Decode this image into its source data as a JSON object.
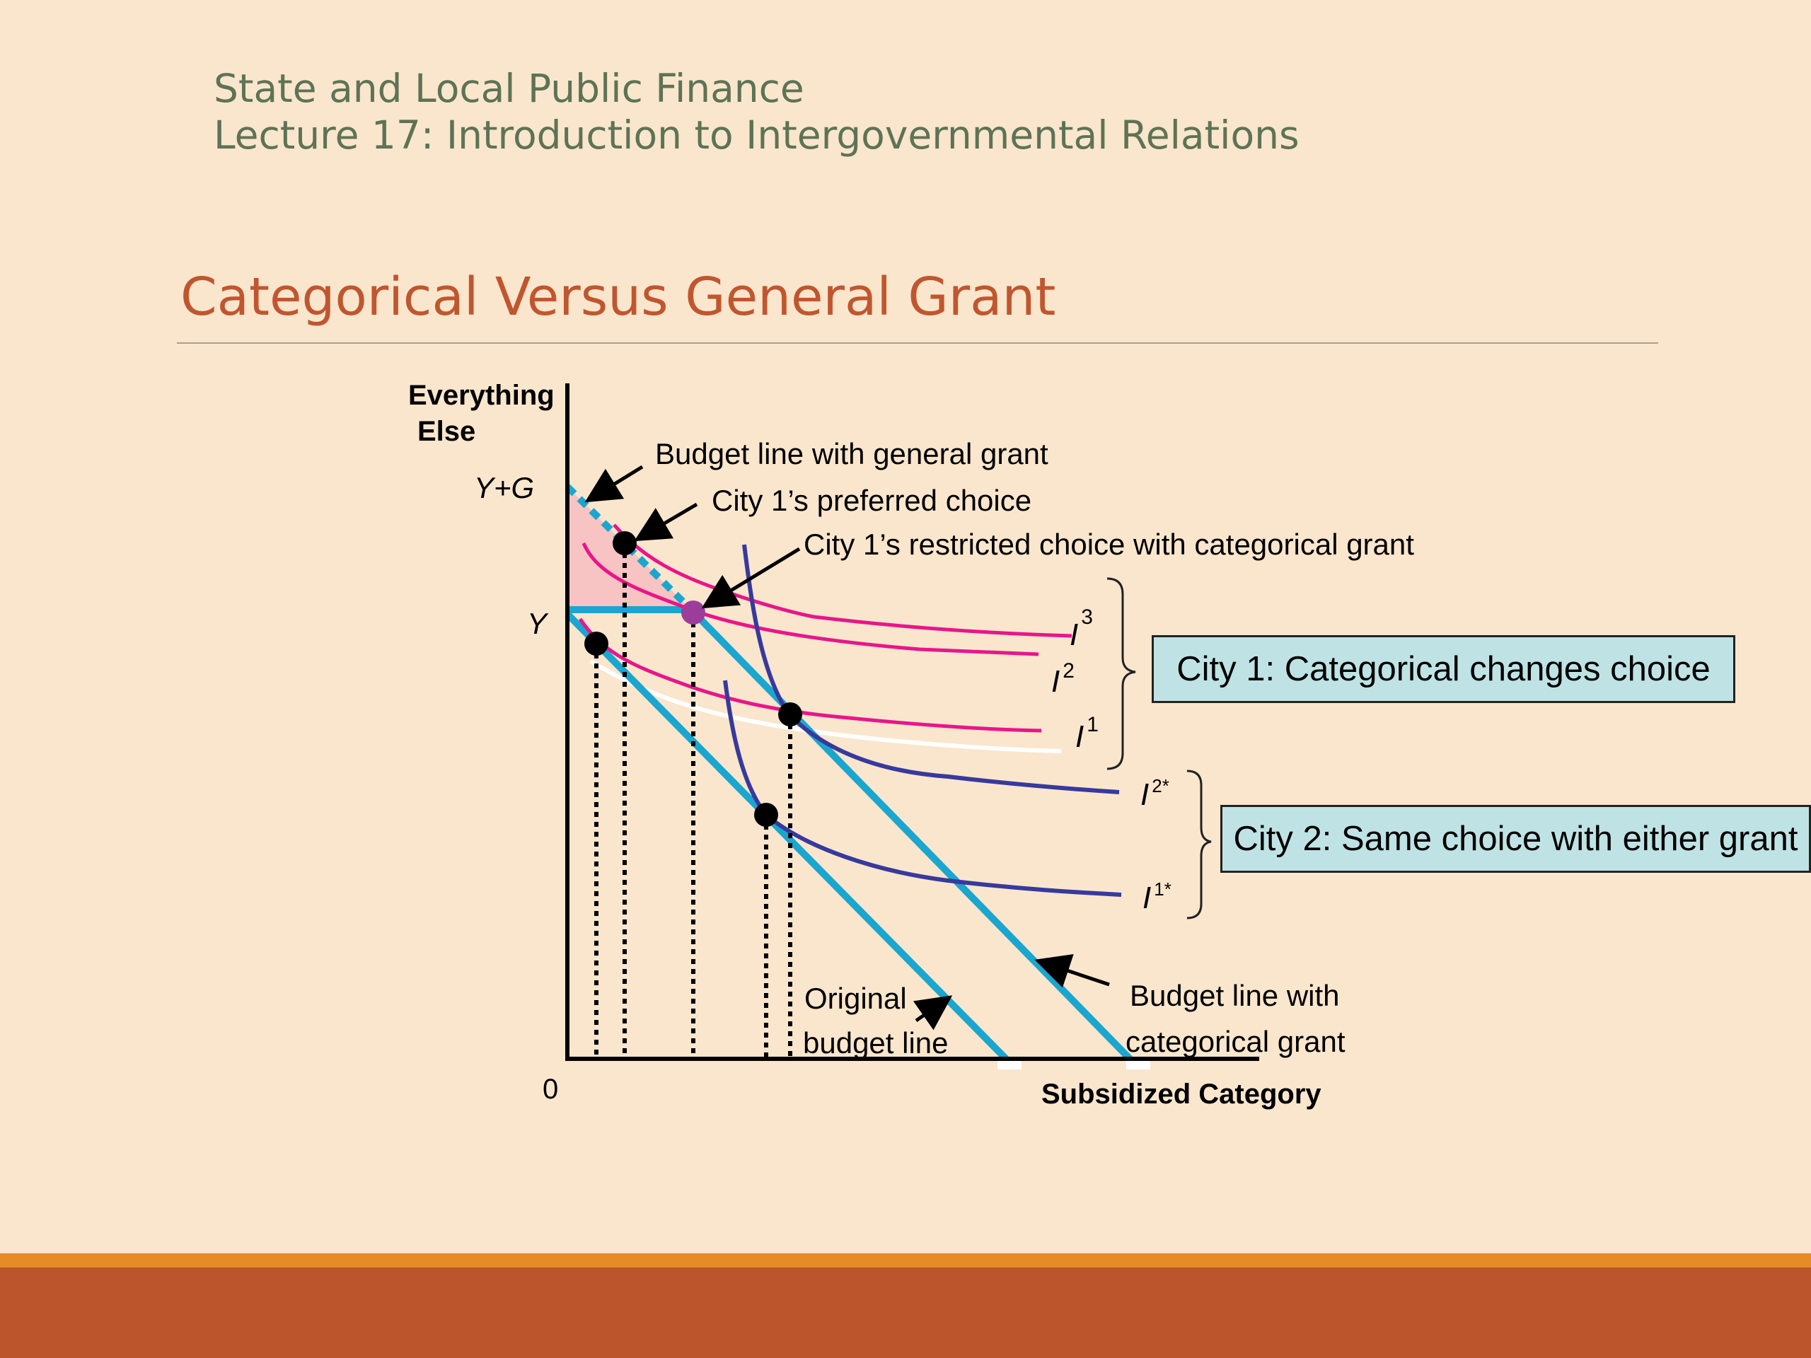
{
  "header": {
    "course": "State and Local Public Finance",
    "lecture": "Lecture 17: Introduction to Intergovernmental Relations"
  },
  "slide_title": "Categorical Versus General Grant",
  "diagram": {
    "y_axis_label_line1": "Everything",
    "y_axis_label_line2": "Else",
    "x_axis_label": "Subsidized Category",
    "origin_label": "0",
    "tick_labels": {
      "y_plus_g": "Y+G",
      "y": "Y"
    },
    "annotations": {
      "budget_general": "Budget line with general grant",
      "city1_preferred": "City 1’s preferred choice",
      "city1_restricted": "City 1’s restricted choice with categorical grant",
      "original_budget_line1": "Original",
      "original_budget_line2": "budget line",
      "categorical_budget_line1": "Budget line with",
      "categorical_budget_line2": "categorical grant"
    },
    "curve_labels": {
      "i3": {
        "base": "I",
        "sup": "3"
      },
      "i2": {
        "base": "I",
        "sup": "2"
      },
      "i1": {
        "base": "I",
        "sup": "1"
      },
      "i2star": {
        "base": "I",
        "sup": "2*"
      },
      "i1star": {
        "base": "I",
        "sup": "1*"
      }
    },
    "callouts": {
      "city1": "City 1: Categorical changes choice",
      "city2": "City 2: Same choice with either grant"
    },
    "colors": {
      "budget_line": "#1aa6cf",
      "city1_curves": "#e8168a",
      "city2_curves": "#373a9c",
      "restricted_point": "#9c3d9c",
      "shading": "#f7c3c3",
      "callout_fill": "#bfe3e4"
    }
  },
  "colors": {
    "background": "#fae6cd",
    "header_text": "#5e7355",
    "title_text": "#c0562f",
    "footer_stripe": "#e58c26",
    "footer_band": "#bc552c"
  }
}
